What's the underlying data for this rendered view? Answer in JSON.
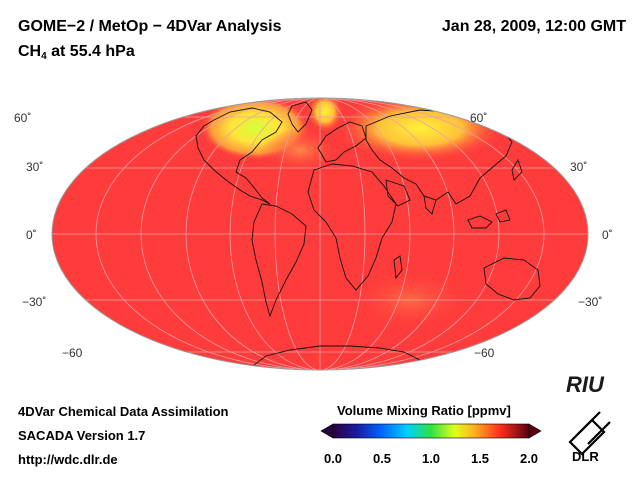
{
  "header": {
    "title": "GOME−2 / MetOp − 4DVar Analysis",
    "subtitle_main": "CH",
    "subtitle_sub": "4",
    "subtitle_rest": " at 55.4 hPa",
    "datetime": "Jan 28, 2009, 12:00 GMT"
  },
  "map": {
    "projection": "mollweide",
    "field": "CH4 volume mixing ratio",
    "background_color": "#ff3c3c",
    "lat_labels_left": [
      "60˚",
      "30˚",
      "0˚",
      "−30˚",
      "−60"
    ],
    "lat_labels_right": [
      "60˚",
      "30˚",
      "0˚",
      "−30˚",
      "−60"
    ]
  },
  "colorbar": {
    "title": "Volume Mixing Ratio [ppmv]",
    "ticks": [
      "0.0",
      "0.5",
      "1.0",
      "1.5",
      "2.0"
    ],
    "range": [
      0.0,
      2.0
    ]
  },
  "footer": {
    "line1": "4DVar Chemical Data Assimilation",
    "line2": "SACADA Version 1.7",
    "line3": "http://wdc.dlr.de"
  },
  "logos": {
    "riu": "RIU",
    "dlr": "DLR"
  }
}
